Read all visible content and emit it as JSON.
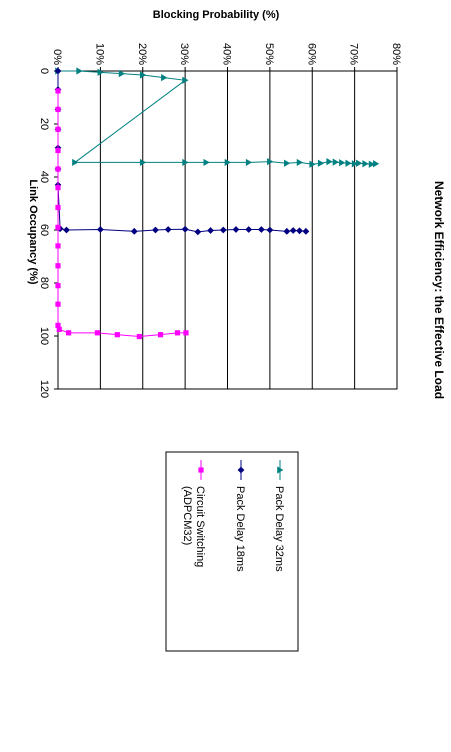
{
  "chart_data": {
    "type": "scatter",
    "title": "Network Efficiency: the Effective Load",
    "xlabel": "Link Occupancy (%)",
    "ylabel": "Blocking Probability (%)",
    "xlim": [
      0,
      120
    ],
    "ylim": [
      0,
      80
    ],
    "x_ticks": [
      "0",
      "20",
      "40",
      "60",
      "80",
      "100",
      "120"
    ],
    "y_ticks": [
      "0%",
      "10%",
      "20%",
      "30%",
      "40%",
      "50%",
      "60%",
      "70%",
      "80%"
    ],
    "grid": "horizontal",
    "legend": "right",
    "series": [
      {
        "name": "Pack Delay 32ms",
        "color": "#008080",
        "marker": "triangle",
        "points": [
          [
            0,
            0
          ],
          [
            0,
            5
          ],
          [
            0.5,
            10
          ],
          [
            1,
            15
          ],
          [
            1.5,
            20
          ],
          [
            2.5,
            25
          ],
          [
            3.5,
            30
          ],
          [
            34.5,
            4
          ],
          [
            34.5,
            20
          ],
          [
            34.5,
            30
          ],
          [
            34.5,
            35
          ],
          [
            34.5,
            40
          ],
          [
            34.5,
            45
          ],
          [
            34.2,
            50
          ],
          [
            34.8,
            54
          ],
          [
            34.5,
            57
          ],
          [
            35.2,
            60
          ],
          [
            34.8,
            62
          ],
          [
            34.2,
            64
          ],
          [
            34.4,
            65.5
          ],
          [
            34.6,
            67
          ],
          [
            34.8,
            68.5
          ],
          [
            35,
            70
          ],
          [
            34.8,
            71
          ],
          [
            35,
            72.5
          ],
          [
            35.2,
            74
          ],
          [
            35,
            75
          ]
        ]
      },
      {
        "name": "Pack Delay 18ms",
        "color": "#000080",
        "marker": "diamond",
        "points": [
          [
            0,
            0
          ],
          [
            7,
            0
          ],
          [
            14.5,
            0
          ],
          [
            22,
            0
          ],
          [
            29,
            0
          ],
          [
            37,
            0
          ],
          [
            43,
            0
          ],
          [
            59.5,
            0.5
          ],
          [
            60,
            2
          ],
          [
            59.8,
            10
          ],
          [
            60.5,
            18
          ],
          [
            60,
            23
          ],
          [
            59.8,
            26
          ],
          [
            59.7,
            30
          ],
          [
            60.7,
            33
          ],
          [
            60.2,
            36
          ],
          [
            60,
            39
          ],
          [
            59.8,
            42
          ],
          [
            59.8,
            45
          ],
          [
            59.8,
            48
          ],
          [
            60,
            50
          ],
          [
            60.5,
            54
          ],
          [
            60.2,
            55.5
          ],
          [
            60.3,
            57
          ],
          [
            60.5,
            58.5
          ]
        ]
      },
      {
        "name": "Circuit Switching (ADPCM32)",
        "color": "#FF00FF",
        "marker": "square",
        "points": [
          [
            7.5,
            0
          ],
          [
            14.5,
            0
          ],
          [
            22,
            0
          ],
          [
            30,
            0
          ],
          [
            37,
            0
          ],
          [
            44,
            0
          ],
          [
            51.5,
            0
          ],
          [
            59,
            0
          ],
          [
            66,
            0
          ],
          [
            73.5,
            0
          ],
          [
            81,
            0
          ],
          [
            88,
            0
          ],
          [
            96,
            0
          ],
          [
            97.5,
            0.3
          ],
          [
            98.8,
            2.5
          ],
          [
            98.8,
            9.3
          ],
          [
            99.5,
            14
          ],
          [
            100.2,
            19.2
          ],
          [
            99.5,
            24.2
          ],
          [
            98.8,
            28.2
          ],
          [
            98.8,
            30.2
          ]
        ]
      }
    ]
  }
}
